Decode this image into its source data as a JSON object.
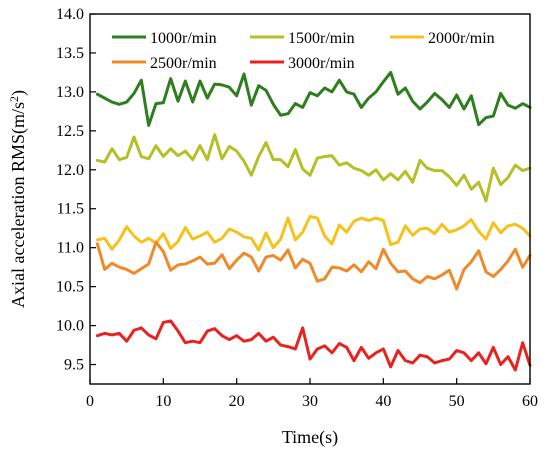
{
  "chart_data": {
    "type": "line",
    "xlabel": "Time(s)",
    "ylabel": "Axial acceleration RMS(m/s²)",
    "ylabel_base": "Axial acceleration RMS(m/s",
    "ylabel_sup": "2",
    "ylabel_tail": ")",
    "xlim": [
      0,
      60
    ],
    "ylim": [
      9.25,
      14.0
    ],
    "xticks": [
      0,
      10,
      20,
      30,
      40,
      50,
      60
    ],
    "yticks": [
      9.5,
      10.0,
      10.5,
      11.0,
      11.5,
      12.0,
      12.5,
      13.0,
      13.5,
      14.0
    ],
    "grid": false,
    "legend_position": "top",
    "x": [
      1,
      2,
      3,
      4,
      5,
      6,
      7,
      8,
      9,
      10,
      11,
      12,
      13,
      14,
      15,
      16,
      17,
      18,
      19,
      20,
      21,
      22,
      23,
      24,
      25,
      26,
      27,
      28,
      29,
      30,
      31,
      32,
      33,
      34,
      35,
      36,
      37,
      38,
      39,
      40,
      41,
      42,
      43,
      44,
      45,
      46,
      47,
      48,
      49,
      50,
      51,
      52,
      53,
      54,
      55,
      56,
      57,
      58,
      59,
      60
    ],
    "series": [
      {
        "name": "1000r/min",
        "color": "#2e7d1e",
        "values": [
          12.97,
          12.92,
          12.87,
          12.84,
          12.87,
          12.98,
          13.15,
          12.57,
          12.85,
          12.86,
          13.17,
          12.88,
          13.14,
          12.87,
          13.14,
          12.92,
          13.1,
          13.09,
          13.06,
          12.95,
          13.23,
          12.83,
          13.08,
          13.02,
          12.84,
          12.7,
          12.72,
          12.85,
          12.8,
          12.99,
          12.95,
          13.05,
          13.0,
          13.15,
          13.0,
          12.97,
          12.8,
          12.92,
          13.0,
          13.13,
          13.25,
          12.97,
          13.05,
          12.88,
          12.78,
          12.87,
          12.98,
          12.9,
          12.8,
          12.96,
          12.78,
          12.95,
          12.58,
          12.67,
          12.69,
          12.98,
          12.83,
          12.79,
          12.85,
          12.8
        ]
      },
      {
        "name": "1500r/min",
        "color": "#b5bf27",
        "values": [
          12.12,
          12.1,
          12.27,
          12.13,
          12.16,
          12.42,
          12.17,
          12.14,
          12.31,
          12.17,
          12.27,
          12.18,
          12.24,
          12.13,
          12.31,
          12.13,
          12.45,
          12.14,
          12.3,
          12.24,
          12.11,
          11.93,
          12.17,
          12.35,
          12.13,
          12.13,
          12.04,
          12.26,
          12.01,
          11.93,
          12.15,
          12.17,
          12.18,
          12.06,
          12.09,
          12.02,
          11.99,
          11.93,
          12.0,
          11.87,
          11.95,
          11.87,
          11.98,
          11.84,
          12.12,
          12.02,
          11.99,
          11.99,
          11.91,
          11.8,
          11.93,
          11.75,
          11.84,
          11.6,
          12.02,
          11.81,
          11.9,
          12.06,
          11.99,
          12.02
        ]
      },
      {
        "name": "2000r/min",
        "color": "#f4c21b",
        "values": [
          11.1,
          11.12,
          10.98,
          11.1,
          11.27,
          11.15,
          11.07,
          11.12,
          11.06,
          11.18,
          10.99,
          11.08,
          11.26,
          11.11,
          11.15,
          11.2,
          11.07,
          11.12,
          11.24,
          11.2,
          11.14,
          11.12,
          10.97,
          11.19,
          11.0,
          11.11,
          11.38,
          11.1,
          11.2,
          11.4,
          11.38,
          11.15,
          11.05,
          11.29,
          11.2,
          11.34,
          11.38,
          11.35,
          11.38,
          11.35,
          11.04,
          11.07,
          11.28,
          11.16,
          11.24,
          11.25,
          11.18,
          11.3,
          11.2,
          11.23,
          11.28,
          11.36,
          11.21,
          11.11,
          11.32,
          11.19,
          11.28,
          11.3,
          11.25,
          11.15
        ]
      },
      {
        "name": "2500r/min",
        "color": "#ef8a2a",
        "values": [
          11.05,
          10.72,
          10.8,
          10.75,
          10.72,
          10.67,
          10.73,
          10.79,
          11.07,
          10.95,
          10.71,
          10.78,
          10.79,
          10.83,
          10.88,
          10.79,
          10.8,
          10.91,
          10.73,
          10.84,
          10.93,
          10.88,
          10.7,
          10.88,
          10.9,
          10.84,
          10.97,
          10.74,
          10.85,
          10.8,
          10.57,
          10.6,
          10.75,
          10.74,
          10.7,
          10.78,
          10.69,
          10.82,
          10.73,
          10.98,
          10.8,
          10.69,
          10.7,
          10.6,
          10.55,
          10.63,
          10.6,
          10.65,
          10.71,
          10.47,
          10.72,
          10.82,
          10.96,
          10.69,
          10.63,
          10.72,
          10.83,
          10.98,
          10.75,
          10.9
        ]
      },
      {
        "name": "3000r/min",
        "color": "#e8231f",
        "values": [
          9.87,
          9.9,
          9.88,
          9.9,
          9.8,
          9.94,
          9.97,
          9.88,
          9.83,
          10.04,
          10.06,
          9.93,
          9.78,
          9.8,
          9.78,
          9.93,
          9.96,
          9.87,
          9.82,
          9.87,
          9.8,
          9.82,
          9.9,
          9.8,
          9.85,
          9.75,
          9.73,
          9.7,
          9.97,
          9.57,
          9.7,
          9.74,
          9.65,
          9.77,
          9.72,
          9.55,
          9.72,
          9.58,
          9.65,
          9.7,
          9.47,
          9.68,
          9.55,
          9.52,
          9.62,
          9.6,
          9.52,
          9.55,
          9.57,
          9.68,
          9.65,
          9.55,
          9.65,
          9.51,
          9.72,
          9.5,
          9.6,
          9.43,
          9.78,
          9.49
        ]
      }
    ]
  }
}
